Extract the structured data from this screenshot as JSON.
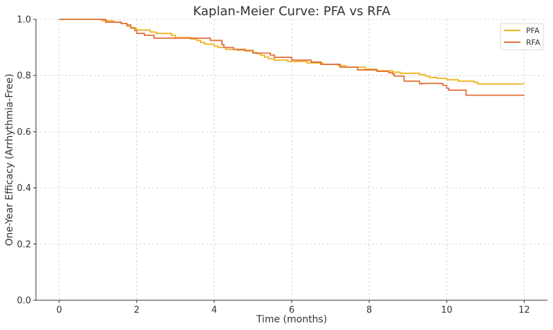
{
  "chart_data": {
    "type": "line",
    "step": true,
    "title": "Kaplan-Meier Curve: PFA vs RFA",
    "xlabel": "Time (months)",
    "ylabel": "One-Year Efficacy (Arrhythmia-Free)",
    "xlim": [
      -0.6,
      12.6
    ],
    "ylim": [
      0,
      1.0
    ],
    "xticks": [
      0,
      2,
      4,
      6,
      8,
      10,
      12
    ],
    "yticks": [
      0.0,
      0.2,
      0.4,
      0.6,
      0.8,
      1.0
    ],
    "xtick_labels": [
      "0",
      "2",
      "4",
      "6",
      "8",
      "10",
      "12"
    ],
    "ytick_labels": [
      "0.0",
      "0.2",
      "0.4",
      "0.6",
      "0.8",
      "1.0"
    ],
    "grid": true,
    "legend": "top-right",
    "series": [
      {
        "name": "PFA",
        "color": "#f0b21b",
        "points": [
          [
            0,
            1.0
          ],
          [
            1.1,
            0.995
          ],
          [
            1.4,
            0.99
          ],
          [
            1.6,
            0.985
          ],
          [
            1.75,
            0.975
          ],
          [
            1.85,
            0.968
          ],
          [
            2.0,
            0.962
          ],
          [
            2.35,
            0.955
          ],
          [
            2.5,
            0.95
          ],
          [
            2.9,
            0.943
          ],
          [
            3.0,
            0.935
          ],
          [
            3.4,
            0.93
          ],
          [
            3.55,
            0.925
          ],
          [
            3.65,
            0.918
          ],
          [
            3.75,
            0.912
          ],
          [
            4.0,
            0.905
          ],
          [
            4.1,
            0.9
          ],
          [
            4.3,
            0.893
          ],
          [
            4.6,
            0.89
          ],
          [
            5.0,
            0.882
          ],
          [
            5.1,
            0.878
          ],
          [
            5.2,
            0.872
          ],
          [
            5.3,
            0.866
          ],
          [
            5.4,
            0.86
          ],
          [
            5.55,
            0.855
          ],
          [
            5.9,
            0.85
          ],
          [
            6.4,
            0.845
          ],
          [
            6.8,
            0.84
          ],
          [
            7.2,
            0.835
          ],
          [
            7.4,
            0.83
          ],
          [
            7.9,
            0.823
          ],
          [
            8.2,
            0.817
          ],
          [
            8.6,
            0.812
          ],
          [
            8.8,
            0.808
          ],
          [
            9.3,
            0.803
          ],
          [
            9.45,
            0.798
          ],
          [
            9.55,
            0.793
          ],
          [
            9.75,
            0.79
          ],
          [
            10.0,
            0.785
          ],
          [
            10.3,
            0.78
          ],
          [
            10.7,
            0.776
          ],
          [
            10.8,
            0.77
          ],
          [
            12.0,
            0.77
          ]
        ]
      },
      {
        "name": "RFA",
        "color": "#e0703a",
        "points": [
          [
            0,
            1.0
          ],
          [
            1.2,
            0.99
          ],
          [
            1.6,
            0.985
          ],
          [
            1.75,
            0.98
          ],
          [
            1.85,
            0.97
          ],
          [
            1.95,
            0.96
          ],
          [
            2.0,
            0.95
          ],
          [
            2.2,
            0.943
          ],
          [
            2.45,
            0.933
          ],
          [
            3.9,
            0.925
          ],
          [
            4.2,
            0.91
          ],
          [
            4.25,
            0.9
          ],
          [
            4.5,
            0.893
          ],
          [
            4.8,
            0.888
          ],
          [
            5.0,
            0.88
          ],
          [
            5.45,
            0.873
          ],
          [
            5.55,
            0.865
          ],
          [
            6.0,
            0.855
          ],
          [
            6.5,
            0.848
          ],
          [
            6.75,
            0.84
          ],
          [
            7.25,
            0.83
          ],
          [
            7.7,
            0.82
          ],
          [
            8.2,
            0.815
          ],
          [
            8.5,
            0.81
          ],
          [
            8.6,
            0.805
          ],
          [
            8.65,
            0.798
          ],
          [
            8.9,
            0.78
          ],
          [
            9.3,
            0.77
          ],
          [
            9.35,
            0.772
          ],
          [
            9.9,
            0.765
          ],
          [
            10.0,
            0.755
          ],
          [
            10.05,
            0.748
          ],
          [
            10.5,
            0.73
          ],
          [
            12.0,
            0.73
          ]
        ]
      }
    ]
  }
}
